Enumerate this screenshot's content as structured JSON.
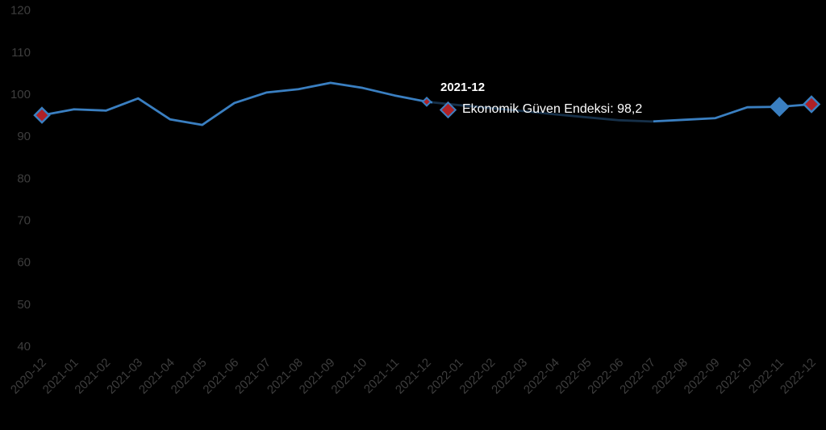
{
  "chart_data": {
    "type": "line",
    "title": "",
    "series_name": "Ekonomik Güven Endeksi",
    "categories": [
      "2020-12",
      "2021-01",
      "2021-02",
      "2021-03",
      "2021-04",
      "2021-05",
      "2021-06",
      "2021-07",
      "2021-08",
      "2021-09",
      "2021-10",
      "2021-11",
      "2021-12",
      "2022-01",
      "2022-02",
      "2022-03",
      "2022-04",
      "2022-05",
      "2022-06",
      "2022-07",
      "2022-08",
      "2022-09",
      "2022-10",
      "2022-11",
      "2022-12"
    ],
    "values": [
      95.0,
      96.4,
      96.1,
      99.0,
      94.0,
      92.7,
      97.9,
      100.4,
      101.2,
      102.7,
      101.5,
      99.7,
      98.2,
      97.4,
      96.7,
      96.0,
      95.2,
      94.5,
      93.8,
      93.5,
      93.9,
      94.3,
      96.9,
      97.0,
      97.6
    ],
    "y_ticks": [
      120,
      110,
      100,
      90,
      80,
      70,
      60,
      50,
      40
    ],
    "ylim": [
      40,
      120
    ],
    "xlabel": "",
    "ylabel": "",
    "grid": false,
    "legend_position": "none",
    "markers": [
      {
        "category": "2020-12",
        "fill": "marker_red",
        "outline": "marker_blue",
        "size": 9,
        "outline_width": 2.5
      },
      {
        "category": "2021-12",
        "fill": "marker_red",
        "outline": "marker_blue",
        "size": 5,
        "outline_width": 2
      },
      {
        "category": "2022-11",
        "fill": "marker_blue",
        "outline": "marker_blue",
        "size": 11,
        "outline_width": 2
      },
      {
        "category": "2022-12",
        "fill": "marker_red",
        "outline": "marker_blue",
        "size": 9.5,
        "outline_width": 2.5
      }
    ]
  },
  "tooltip": {
    "title": "2021-12",
    "series_label": "Ekonomik Güven Endeksi",
    "value": "98,2",
    "text": "Ekonomik Güven Endeksi: 98,2"
  },
  "colors": {
    "background": "#000000",
    "line": "#3a7fc1",
    "marker_red": "#b02126",
    "marker_blue": "#3a7fc1",
    "axis_label": "#3e3e3e",
    "tooltip_text": "#ffffff"
  }
}
